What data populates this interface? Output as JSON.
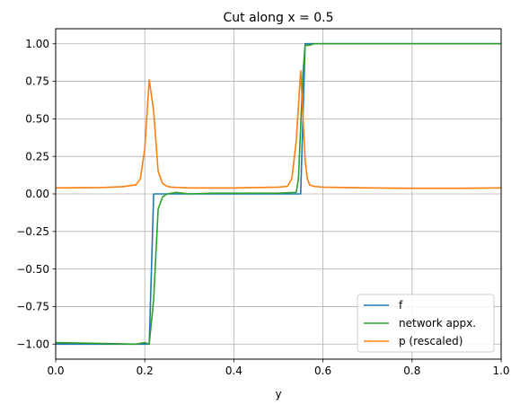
{
  "chart_data": {
    "type": "line",
    "title": "Cut along x = 0.5",
    "xlabel": "y",
    "ylabel": "",
    "xlim": [
      0.0,
      1.0
    ],
    "ylim": [
      -1.1,
      1.1
    ],
    "grid": true,
    "legend_position": "lower-right",
    "x_ticks": [
      0.0,
      0.2,
      0.4,
      0.6,
      0.8,
      1.0
    ],
    "x_tick_labels": [
      "0.0",
      "0.2",
      "0.4",
      "0.6",
      "0.8",
      "1.0"
    ],
    "y_ticks": [
      -1.0,
      -0.75,
      -0.5,
      -0.25,
      0.0,
      0.25,
      0.5,
      0.75,
      1.0
    ],
    "y_tick_labels": [
      "−1.00",
      "−0.75",
      "−0.50",
      "−0.25",
      "0.00",
      "0.25",
      "0.50",
      "0.75",
      "1.00"
    ],
    "series": [
      {
        "name": "f",
        "color": "#1f77b4",
        "x": [
          0.0,
          0.21,
          0.22,
          0.55,
          0.56,
          1.0
        ],
        "y": [
          -1.0,
          -1.0,
          0.0,
          0.0,
          1.0,
          1.0
        ]
      },
      {
        "name": "network appx.",
        "color": "#2ca02c",
        "x": [
          0.0,
          0.18,
          0.2,
          0.21,
          0.22,
          0.23,
          0.24,
          0.25,
          0.27,
          0.3,
          0.35,
          0.4,
          0.45,
          0.5,
          0.54,
          0.545,
          0.55,
          0.555,
          0.56,
          0.57,
          0.58,
          0.6,
          0.7,
          0.8,
          0.9,
          1.0
        ],
        "y": [
          -0.99,
          -1.0,
          -0.99,
          -1.0,
          -0.7,
          -0.1,
          -0.02,
          0.0,
          0.01,
          0.0,
          0.005,
          0.005,
          0.005,
          0.005,
          0.01,
          0.1,
          0.45,
          0.8,
          0.99,
          0.99,
          1.0,
          1.0,
          1.0,
          1.0,
          1.0,
          1.0
        ]
      },
      {
        "name": "p (rescaled)",
        "color": "#ff7f0e",
        "x": [
          0.0,
          0.1,
          0.15,
          0.18,
          0.19,
          0.2,
          0.21,
          0.22,
          0.23,
          0.24,
          0.25,
          0.26,
          0.28,
          0.3,
          0.4,
          0.5,
          0.52,
          0.53,
          0.54,
          0.55,
          0.56,
          0.565,
          0.57,
          0.58,
          0.6,
          0.7,
          0.8,
          0.9,
          1.0
        ],
        "y": [
          0.04,
          0.042,
          0.048,
          0.06,
          0.1,
          0.3,
          0.76,
          0.55,
          0.15,
          0.07,
          0.05,
          0.045,
          0.042,
          0.04,
          0.04,
          0.045,
          0.05,
          0.1,
          0.35,
          0.82,
          0.22,
          0.1,
          0.06,
          0.05,
          0.045,
          0.04,
          0.038,
          0.038,
          0.04
        ]
      }
    ]
  }
}
